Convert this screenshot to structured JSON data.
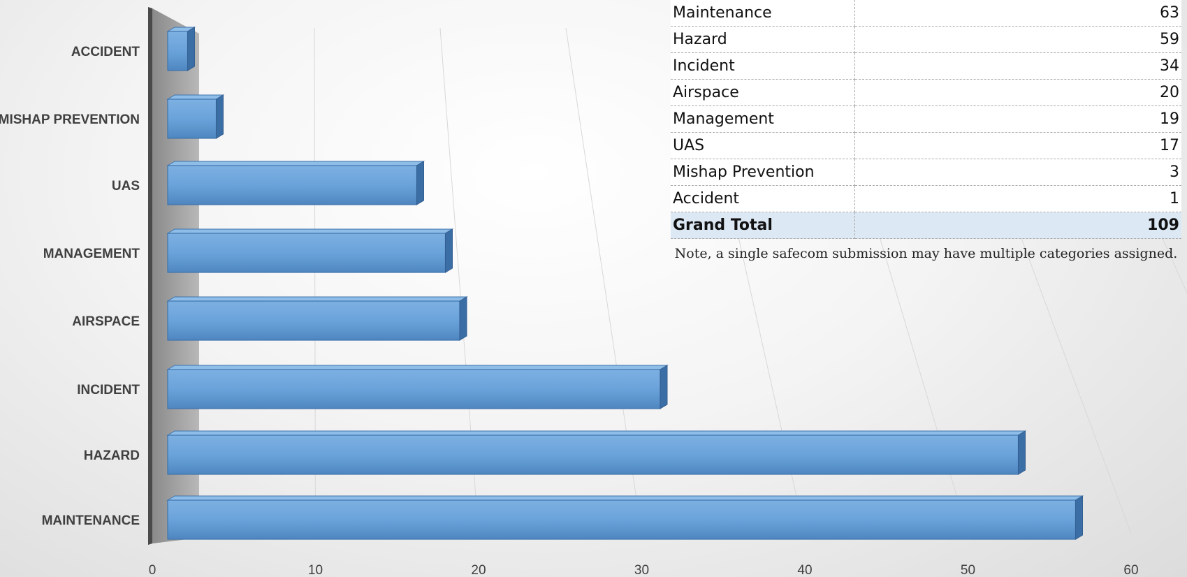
{
  "chart_data": {
    "type": "bar",
    "orientation": "horizontal",
    "categories": [
      "ACCIDENT",
      "MISHAP PREVENTION",
      "UAS",
      "MANAGEMENT",
      "AIRSPACE",
      "INCIDENT",
      "HAZARD",
      "MAINTENANCE"
    ],
    "values": [
      1,
      3,
      17,
      19,
      20,
      34,
      59,
      63
    ],
    "xlim": [
      0,
      70
    ],
    "xticks": [
      "0",
      "10",
      "20",
      "30",
      "40",
      "50",
      "60",
      "70"
    ],
    "title": "",
    "xlabel": "",
    "ylabel": "",
    "grid": true,
    "bar_color": "#5b9bd5"
  },
  "table": {
    "rows": [
      {
        "category": "Maintenance",
        "value": "63"
      },
      {
        "category": "Hazard",
        "value": "59"
      },
      {
        "category": "Incident",
        "value": "34"
      },
      {
        "category": "Airspace",
        "value": "20"
      },
      {
        "category": "Management",
        "value": "19"
      },
      {
        "category": "UAS",
        "value": "17"
      },
      {
        "category": "Mishap Prevention",
        "value": "3"
      },
      {
        "category": "Accident",
        "value": "1"
      }
    ],
    "total_label": "Grand Total",
    "total_value": "109",
    "header_fill": "#dce8f4"
  },
  "note": "Note, a single safecom submission may have multiple categories assigned."
}
